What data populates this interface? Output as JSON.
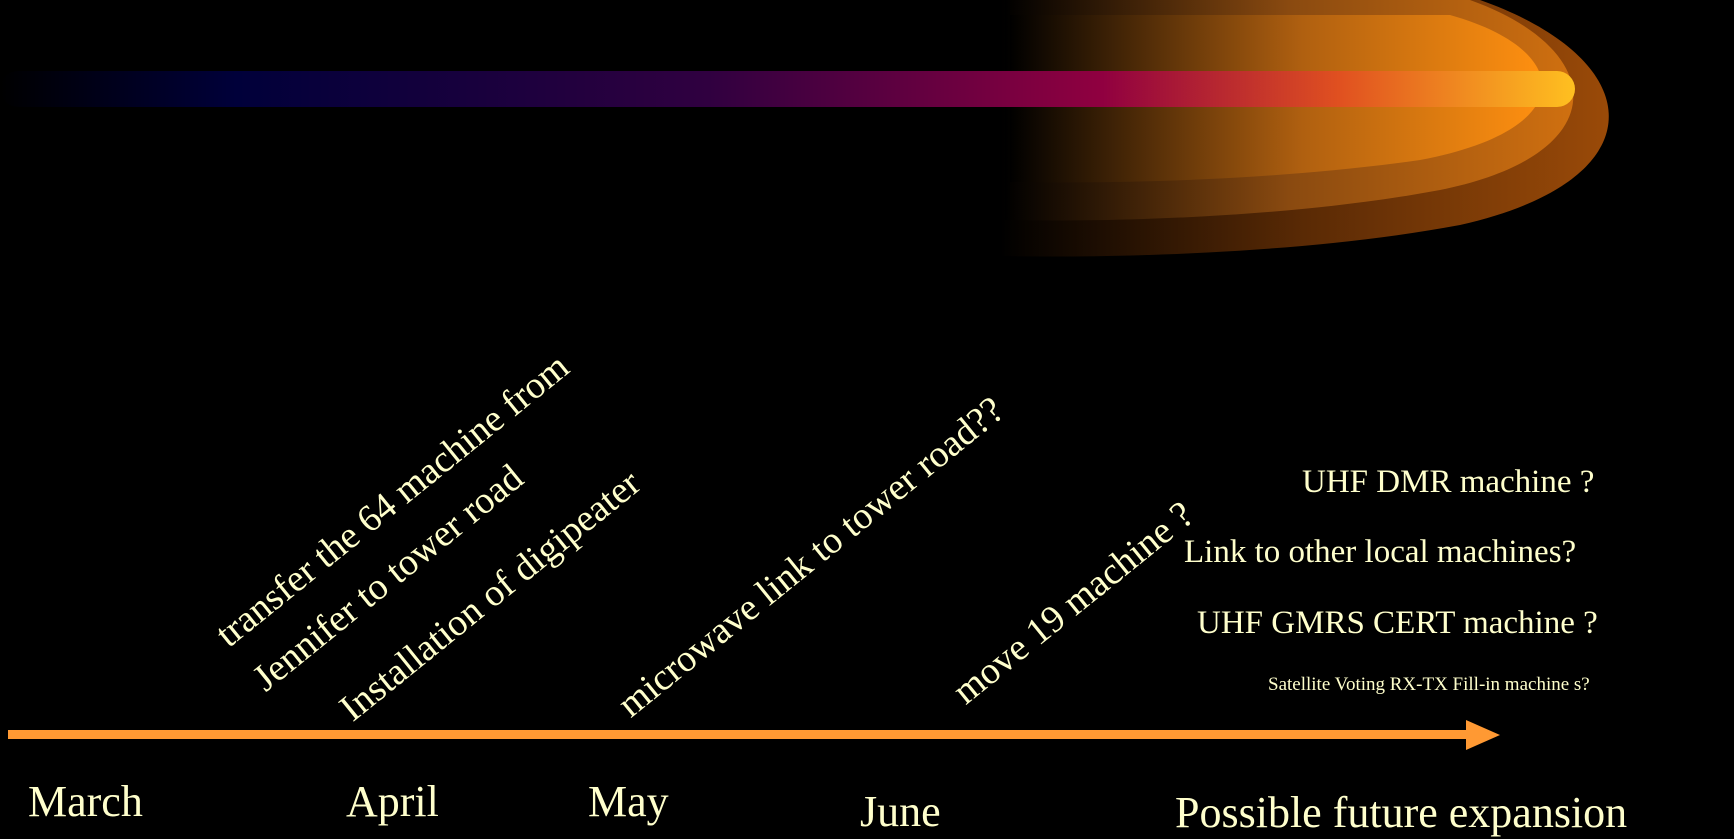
{
  "months": [
    "March",
    "April",
    "May",
    "June"
  ],
  "future_heading": "Possible future expansion",
  "milestones": [
    "transfer the 64 machine from",
    "Jennifer to tower road",
    "Installation of digipeater",
    "microwave link to tower road??",
    "move 19 machine ?"
  ],
  "future_items": [
    "UHF DMR  machine ?",
    "Link to other  local  machines?",
    "UHF GMRS CERT machine ?",
    "Satellite Voting RX-TX Fill-in   machine s?"
  ],
  "colors": {
    "background": "#000000",
    "text": "#ffffcc",
    "arrow": "#ff9933",
    "bar_start": "#000040",
    "bar_mid": "#80003a",
    "bar_end": "#ffb020"
  }
}
